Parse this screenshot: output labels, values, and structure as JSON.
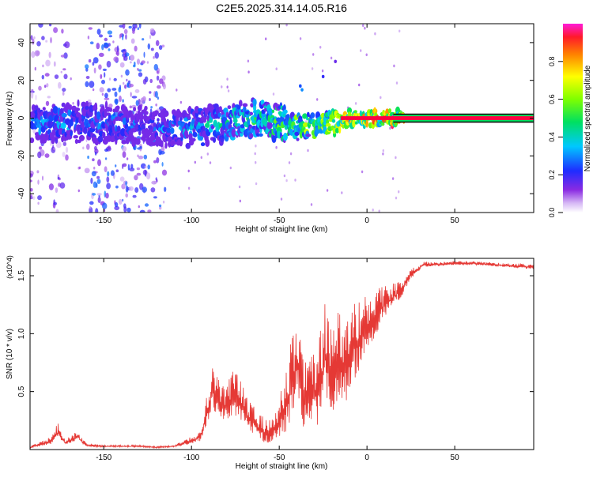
{
  "title": "C2E5.2025.314.14.05.R16",
  "colors": {
    "signal_line": "#e53935",
    "axis": "#000000",
    "band_top": "#ff0040",
    "band_mid": "#00e060",
    "band_low": "#7b1fe0"
  },
  "chart_data": [
    {
      "type": "heatmap",
      "title": "C2E5.2025.314.14.05.R16",
      "xlabel": "Height of straight line (km)",
      "ylabel": "Frequency (Hz)",
      "xlim": [
        -192,
        95
      ],
      "ylim": [
        -50,
        50
      ],
      "x_ticks": [
        -150,
        -100,
        -50,
        0,
        50
      ],
      "x_tick_labels": [
        "-150",
        "-100",
        "-50",
        "0",
        "50"
      ],
      "y_ticks": [
        -40,
        -20,
        0,
        20,
        40
      ],
      "y_tick_labels": [
        "-40",
        "-20",
        "0",
        "20",
        "40"
      ],
      "colorbar": {
        "label": "Normalized spectral amplitude",
        "range": [
          0,
          1
        ],
        "ticks": [
          0.0,
          0.2,
          0.4,
          0.6,
          0.8
        ],
        "tick_labels": [
          "0.0",
          "0.2",
          "0.4",
          "0.6",
          "0.8"
        ],
        "colormap": "rainbow (white-purple-blue-cyan-green-yellow-red-magenta)"
      },
      "ridge": {
        "description": "dominant spectral line near 0 Hz",
        "x": [
          -190,
          -175,
          -160,
          -145,
          -130,
          -115,
          -100,
          -85,
          -70,
          -60,
          -50,
          -40,
          -30,
          -20,
          -10,
          0,
          10,
          20,
          50,
          95
        ],
        "y": [
          -4,
          -3,
          -2,
          -3,
          -4,
          -6,
          -5,
          -3,
          -1,
          0,
          -2,
          -4,
          -4,
          -2,
          0,
          0,
          0,
          0,
          0,
          0
        ],
        "amplitude": [
          0.3,
          0.35,
          0.3,
          0.3,
          0.25,
          0.3,
          0.35,
          0.4,
          0.45,
          0.45,
          0.55,
          0.6,
          0.6,
          0.65,
          0.7,
          0.75,
          0.8,
          0.9,
          0.95,
          0.95
        ]
      },
      "noise_regions": [
        {
          "x_range": [
            -192,
            -170
          ],
          "y_range": [
            -50,
            50
          ],
          "level": 0.1
        },
        {
          "x_range": [
            -160,
            -115
          ],
          "y_range": [
            -50,
            50
          ],
          "level": 0.15
        }
      ]
    },
    {
      "type": "line",
      "title": "",
      "xlabel": "Height of straight line (km)",
      "ylabel": "SNR (10 * v/v)",
      "y_scale_label": "(x10^4)",
      "xlim": [
        -192,
        95
      ],
      "ylim": [
        0,
        1.65
      ],
      "x_ticks": [
        -150,
        -100,
        -50,
        0,
        50
      ],
      "x_tick_labels": [
        "-150",
        "-100",
        "-50",
        "0",
        "50"
      ],
      "y_ticks": [
        0.5,
        1.0,
        1.5
      ],
      "y_tick_labels": [
        "0.5",
        "1.0",
        "1.5"
      ],
      "series": [
        {
          "name": "SNR",
          "x": [
            -192,
            -180,
            -176,
            -172,
            -165,
            -160,
            -150,
            -140,
            -130,
            -120,
            -110,
            -100,
            -95,
            -92,
            -88,
            -84,
            -80,
            -76,
            -72,
            -68,
            -64,
            -60,
            -56,
            -52,
            -48,
            -44,
            -40,
            -36,
            -32,
            -28,
            -24,
            -20,
            -16,
            -12,
            -8,
            -4,
            0,
            4,
            8,
            12,
            16,
            20,
            24,
            28,
            32,
            40,
            50,
            60,
            70,
            80,
            95
          ],
          "y": [
            0.02,
            0.08,
            0.17,
            0.06,
            0.12,
            0.04,
            0.03,
            0.03,
            0.03,
            0.02,
            0.03,
            0.08,
            0.12,
            0.3,
            0.55,
            0.45,
            0.4,
            0.5,
            0.42,
            0.3,
            0.25,
            0.18,
            0.15,
            0.22,
            0.35,
            0.55,
            0.85,
            0.5,
            0.65,
            0.55,
            0.9,
            0.7,
            0.8,
            0.75,
            0.95,
            1.0,
            1.1,
            1.15,
            1.25,
            1.3,
            1.35,
            1.4,
            1.5,
            1.55,
            1.6,
            1.6,
            1.61,
            1.61,
            1.6,
            1.59,
            1.58
          ],
          "spread": [
            0.01,
            0.04,
            0.08,
            0.03,
            0.05,
            0.02,
            0.01,
            0.01,
            0.01,
            0.01,
            0.01,
            0.04,
            0.06,
            0.15,
            0.25,
            0.22,
            0.2,
            0.25,
            0.22,
            0.18,
            0.16,
            0.14,
            0.12,
            0.16,
            0.28,
            0.45,
            0.5,
            0.4,
            0.5,
            0.45,
            0.55,
            0.5,
            0.5,
            0.45,
            0.45,
            0.4,
            0.3,
            0.25,
            0.2,
            0.15,
            0.12,
            0.1,
            0.06,
            0.04,
            0.03,
            0.02,
            0.02,
            0.02,
            0.02,
            0.02,
            0.03
          ]
        }
      ]
    }
  ]
}
